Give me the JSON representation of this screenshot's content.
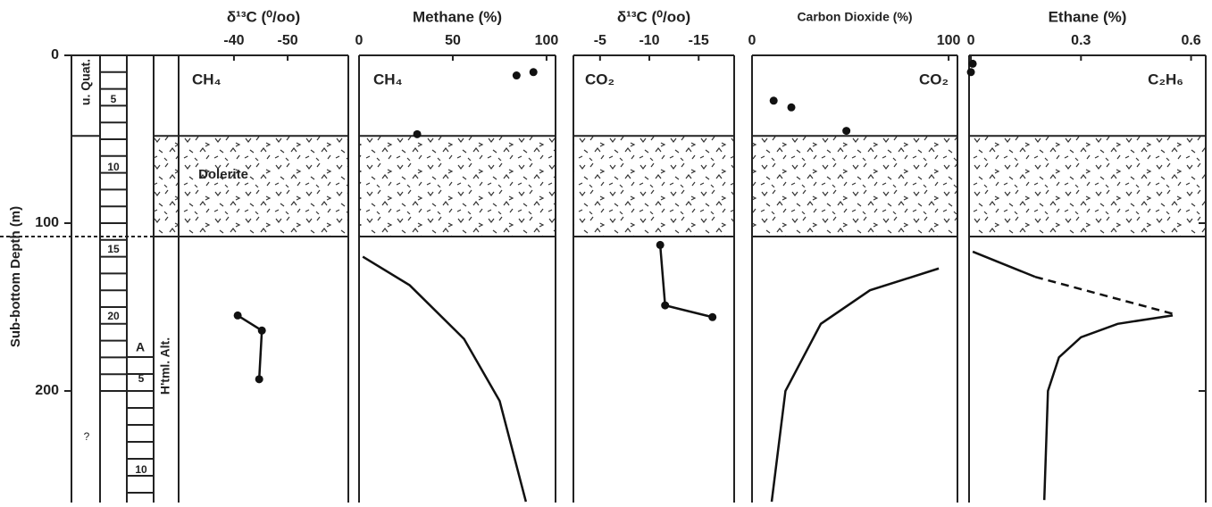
{
  "y_label": "Sub-bottom Depth (m)",
  "dolerite": {
    "label": "Dolerite",
    "top": 48,
    "bottom": 108
  },
  "stratigraphy": {
    "age": "u. Quat.",
    "alteration": "H'tml. Alt.",
    "cores": [
      "5",
      "10",
      "15",
      "20",
      "A",
      "5",
      "10"
    ],
    "unknown": "?"
  },
  "chart_data": [
    {
      "type": "line",
      "title": "δ¹³C (⁰/oo)",
      "panel_label": "CH₄",
      "xlim": [
        -29.7,
        -61.3
      ],
      "xticks": [
        -40,
        -50
      ],
      "ylim": [
        0,
        266.5
      ],
      "yticks": [
        0,
        100,
        200
      ],
      "series": [
        {
          "style": "line-markers",
          "color": "#111",
          "x": [
            -40.7,
            -45.2,
            -44.7
          ],
          "y": [
            155,
            164,
            193
          ]
        }
      ]
    },
    {
      "type": "line",
      "title": "Methane (%)",
      "panel_label": "CH₄",
      "xlim": [
        0,
        104.8
      ],
      "xticks": [
        0,
        50,
        100
      ],
      "ylim": [
        0,
        266.5
      ],
      "yticks": [
        0,
        100,
        200
      ],
      "series": [
        {
          "style": "markers",
          "color": "#111",
          "x": [
            84,
            93,
            31
          ],
          "y": [
            12,
            10,
            47
          ]
        },
        {
          "style": "line",
          "color": "#111",
          "x": [
            2,
            27,
            56,
            75,
            89
          ],
          "y": [
            120,
            137,
            169,
            206,
            266
          ]
        }
      ]
    },
    {
      "type": "line",
      "title": "δ¹³C (⁰/oo)",
      "panel_label": "CO₂",
      "xlim": [
        -2.3,
        -18.6
      ],
      "xticks": [
        -5,
        -10,
        -15
      ],
      "ylim": [
        0,
        266.5
      ],
      "yticks": [
        0,
        100,
        200
      ],
      "series": [
        {
          "style": "line-markers",
          "color": "#111",
          "x": [
            -11.1,
            -11.6,
            -16.4
          ],
          "y": [
            113,
            149,
            156
          ]
        }
      ]
    },
    {
      "type": "line",
      "title": "Carbon Dioxide (%)",
      "panel_label": "CO₂",
      "xlim": [
        0,
        104.5
      ],
      "xticks": [
        0,
        100
      ],
      "ylim": [
        0,
        266.5
      ],
      "yticks": [
        0,
        100,
        200
      ],
      "series": [
        {
          "style": "markers",
          "color": "#111",
          "x": [
            11,
            20,
            48
          ],
          "y": [
            27,
            31,
            45
          ]
        },
        {
          "style": "line",
          "color": "#111",
          "x": [
            95,
            60,
            35,
            17,
            10
          ],
          "y": [
            127,
            140,
            160,
            200,
            266
          ]
        }
      ]
    },
    {
      "type": "line",
      "title": "Ethane (%)",
      "panel_label": "C₂H₆",
      "xlim": [
        -0.005,
        0.64
      ],
      "xticks": [
        0,
        0.3,
        0.6
      ],
      "ylim": [
        0,
        266.5
      ],
      "yticks": [
        0,
        100,
        200
      ],
      "series": [
        {
          "style": "markers",
          "color": "#111",
          "x": [
            0.005,
            0
          ],
          "y": [
            5,
            10
          ]
        },
        {
          "style": "line",
          "color": "#111",
          "x": [
            0.005,
            0.175
          ],
          "y": [
            117,
            132
          ]
        },
        {
          "style": "dashed",
          "color": "#111",
          "x": [
            0.175,
            0.55
          ],
          "y": [
            132,
            154
          ]
        },
        {
          "style": "line",
          "color": "#111",
          "x": [
            0.55,
            0.4,
            0.3,
            0.24,
            0.21,
            0.2
          ],
          "y": [
            155,
            160,
            168,
            180,
            200,
            265
          ]
        }
      ]
    }
  ]
}
